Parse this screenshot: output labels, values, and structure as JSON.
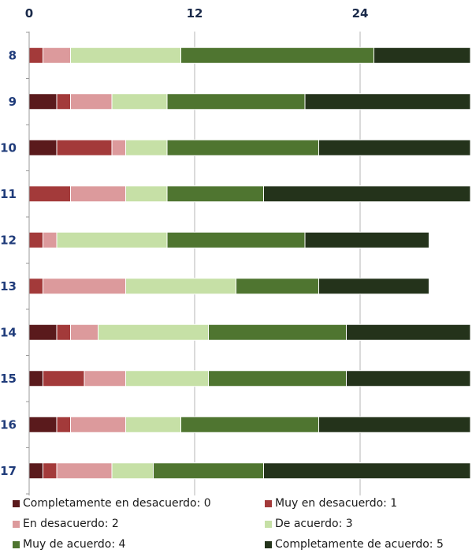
{
  "chart_data": {
    "type": "bar",
    "orientation": "horizontal",
    "stacked": true,
    "categories": [
      "8",
      "9",
      "10",
      "11",
      "12",
      "13",
      "14",
      "15",
      "16",
      "17"
    ],
    "xticks": [
      "0",
      "12",
      "24"
    ],
    "xlim": [
      0,
      32
    ],
    "grid": true,
    "legend_position": "bottom",
    "series": [
      {
        "name": "Completamente en desacuerdo: 0",
        "color": "#5a1a1c",
        "values": [
          0,
          2,
          2,
          0,
          0,
          0,
          2,
          1,
          2,
          1
        ]
      },
      {
        "name": "Muy en desacuerdo: 1",
        "color": "#a33a3a",
        "values": [
          1,
          1,
          4,
          3,
          1,
          1,
          1,
          3,
          1,
          1
        ]
      },
      {
        "name": "En desacuerdo: 2",
        "color": "#dc9a9c",
        "values": [
          2,
          3,
          1,
          4,
          1,
          6,
          2,
          3,
          4,
          4
        ]
      },
      {
        "name": "De acuerdo: 3",
        "color": "#c6e0a6",
        "values": [
          8,
          4,
          3,
          3,
          8,
          8,
          8,
          6,
          4,
          3
        ]
      },
      {
        "name": "Muy de acuerdo: 4",
        "color": "#4f7530",
        "values": [
          14,
          10,
          11,
          7,
          10,
          6,
          10,
          10,
          10,
          8
        ]
      },
      {
        "name": "Completamente de acuerdo: 5",
        "color": "#24331b",
        "values": [
          7,
          12,
          11,
          15,
          9,
          8,
          9,
          9,
          11,
          15
        ]
      }
    ]
  }
}
